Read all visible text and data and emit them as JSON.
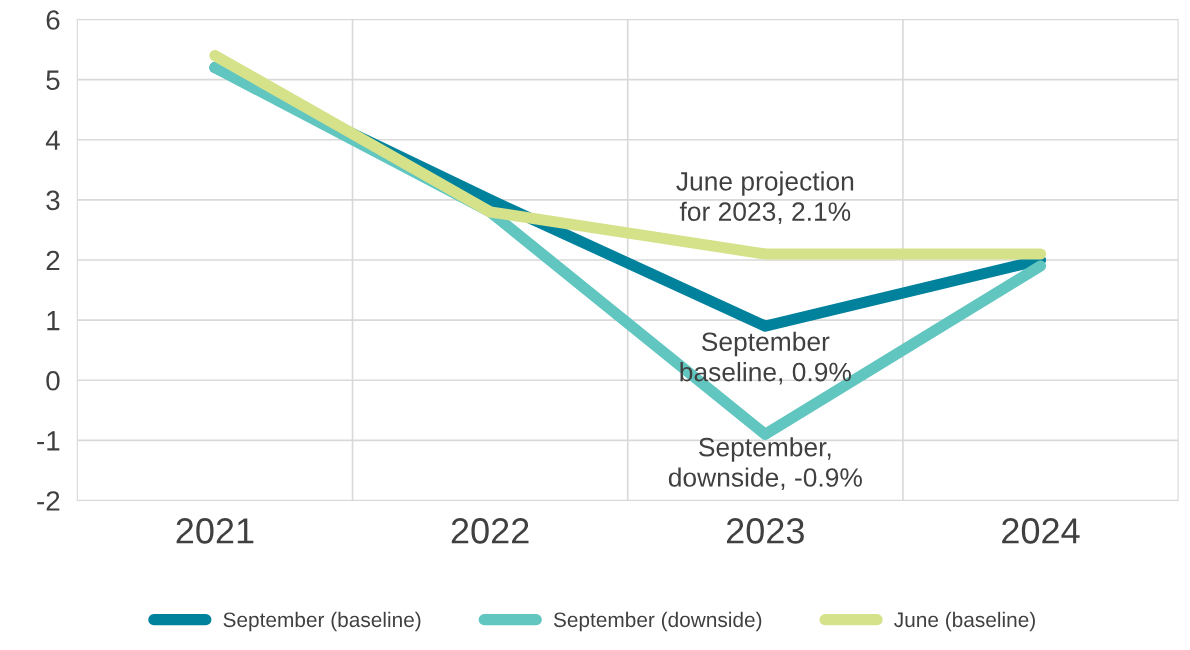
{
  "chart_data": {
    "type": "line",
    "categories": [
      "2021",
      "2022",
      "2023",
      "2024"
    ],
    "series": [
      {
        "name": "September (baseline)",
        "color": "#00819c",
        "values": [
          5.2,
          3.0,
          0.9,
          2.0
        ]
      },
      {
        "name": "September (downside)",
        "color": "#62c6c0",
        "values": [
          5.2,
          2.8,
          -0.9,
          1.9
        ]
      },
      {
        "name": "June (baseline)",
        "color": "#d5e28a",
        "values": [
          5.4,
          2.8,
          2.1,
          2.1
        ]
      }
    ],
    "ylim": [
      -2,
      6
    ],
    "yticks": [
      {
        "value": -2,
        "label": "-2"
      },
      {
        "value": -1,
        "label": "-1"
      },
      0,
      1,
      2,
      3,
      4,
      5,
      6
    ],
    "annotations": [
      {
        "text": "June projection\nfor 2023, 2.1%",
        "x": "2023",
        "y": 2.1
      },
      {
        "text": "September\nbaseline, 0.9%",
        "x": "2023",
        "y": 0.9
      },
      {
        "text": "September,\ndownside, -0.9%",
        "x": "2023",
        "y": -0.9
      }
    ],
    "grid": true,
    "legend": "bottom",
    "marker": "none",
    "line_style": "solid"
  }
}
